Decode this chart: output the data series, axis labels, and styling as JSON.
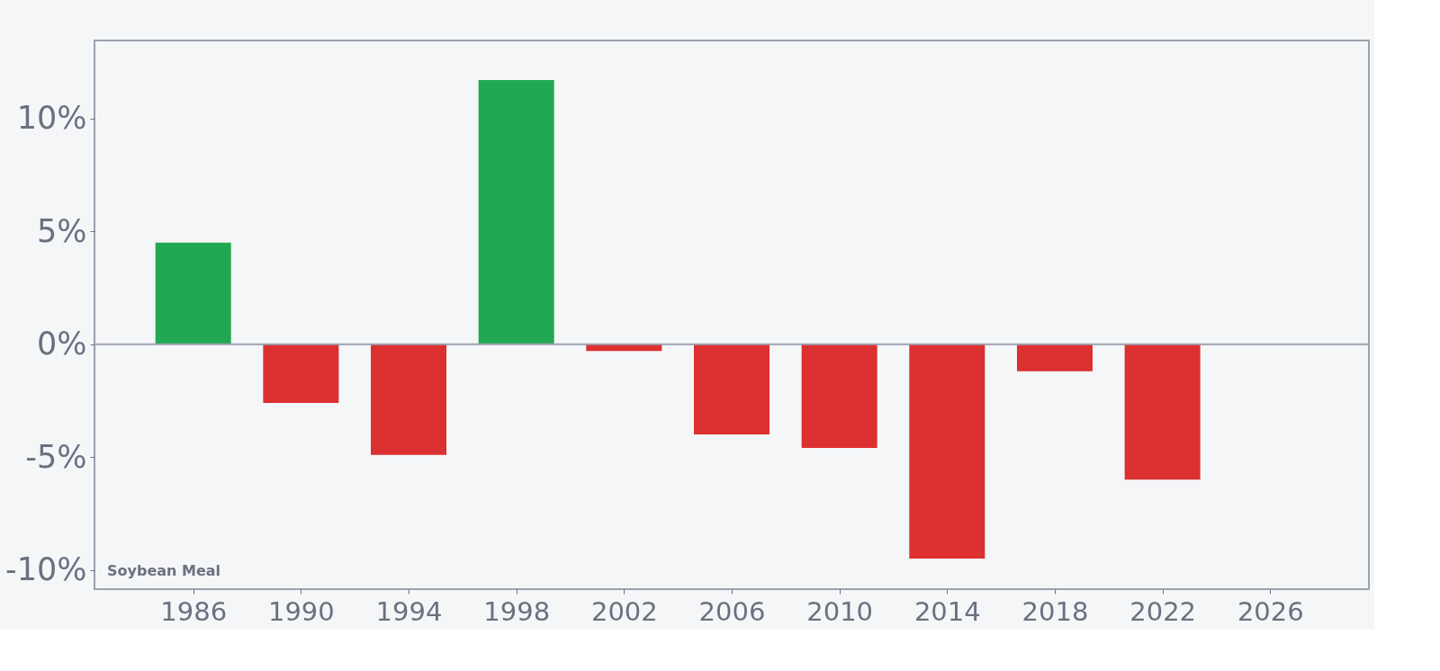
{
  "chart_data": {
    "type": "bar",
    "x": [
      1986,
      1990,
      1994,
      1998,
      2002,
      2006,
      2010,
      2014,
      2018,
      2022
    ],
    "values": [
      4.5,
      -2.6,
      -4.9,
      11.7,
      -0.3,
      -4.0,
      -4.6,
      -9.5,
      -1.2,
      -6.0
    ],
    "colors": [
      "#22a852",
      "#dc3031",
      "#dc3031",
      "#22a852",
      "#dc3031",
      "#dc3031",
      "#dc3031",
      "#dc3031",
      "#dc3031",
      "#dc3031"
    ],
    "xlim": [
      1982.5,
      2029.5
    ],
    "xticks": [
      1986,
      1990,
      1994,
      1998,
      2002,
      2006,
      2010,
      2014,
      2018,
      2022,
      2026
    ],
    "ylim": [
      -10.85,
      13.45
    ],
    "yticks": [
      {
        "value": -10,
        "label": "-10%"
      },
      {
        "value": -5,
        "label": "-5%"
      },
      {
        "value": 0,
        "label": "0%"
      },
      {
        "value": 5,
        "label": "5%"
      },
      {
        "value": 10,
        "label": "10%"
      }
    ],
    "ref_lines": [
      {
        "axis": "y",
        "value": 0,
        "color": "#9ca0b0"
      }
    ],
    "annotations": [
      "Soybean Meal"
    ],
    "grid": false,
    "legend": false
  }
}
